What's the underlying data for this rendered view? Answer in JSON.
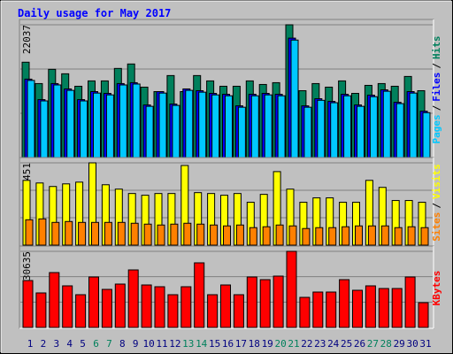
{
  "title": "Daily usage for May 2017",
  "separator": "/",
  "chart_data": [
    {
      "type": "bar",
      "ylim": [
        0,
        22037
      ],
      "yticks": [
        22037
      ],
      "series": [
        {
          "name": "Hits",
          "color": "#00805c",
          "values": [
            15825,
            12276,
            14642,
            13903,
            11832,
            12719,
            12719,
            14790,
            15530,
            11684,
            10945,
            13607,
            10945,
            13607,
            12719,
            11832,
            11832,
            12719,
            12128,
            12424,
            22037,
            11093,
            12276,
            11684,
            12719,
            10649,
            11980,
            12276,
            11832,
            13459,
            11093
          ]
        },
        {
          "name": "Files",
          "color": "#0000ff",
          "values": [
            13015,
            9614,
            12276,
            11388,
            9614,
            10945,
            10649,
            12276,
            12424,
            8726,
            10945,
            8874,
            11388,
            11093,
            10649,
            10501,
            8578,
            10501,
            10649,
            10501,
            19819,
            8578,
            9761,
            9318,
            10501,
            8726,
            10353,
            11240,
            9170,
            10945,
            7691
          ]
        },
        {
          "name": "Pages",
          "color": "#00c8ff",
          "values": [
            12800,
            9400,
            12050,
            11150,
            9400,
            10700,
            10400,
            12050,
            12200,
            8500,
            10700,
            8650,
            11150,
            10850,
            10400,
            10250,
            8350,
            10250,
            10400,
            10250,
            19500,
            8350,
            9500,
            9100,
            10250,
            8500,
            10100,
            11000,
            8950,
            10700,
            7450
          ]
        }
      ]
    },
    {
      "type": "bar",
      "ylim": [
        0,
        3451
      ],
      "yticks": [
        3451
      ],
      "series": [
        {
          "name": "Visits",
          "color": "#ffff00",
          "values": [
            2716,
            2606,
            2459,
            2569,
            2642,
            3451,
            2532,
            2349,
            2165,
            2092,
            2165,
            2165,
            3340,
            2202,
            2165,
            2092,
            2165,
            1798,
            2129,
            3083,
            2349,
            1798,
            1982,
            1982,
            1798,
            1798,
            2716,
            2422,
            1872,
            1872,
            1798
          ]
        },
        {
          "name": "Sites",
          "color": "#ff8000",
          "values": [
            1064,
            1101,
            954,
            991,
            954,
            954,
            954,
            954,
            918,
            881,
            844,
            881,
            918,
            881,
            844,
            807,
            844,
            734,
            771,
            844,
            807,
            697,
            734,
            734,
            771,
            807,
            807,
            807,
            734,
            771,
            734
          ]
        }
      ]
    },
    {
      "type": "bar",
      "ylim": [
        0,
        330635
      ],
      "yticks": [
        330635
      ],
      "categories": [
        "1",
        "2",
        "3",
        "4",
        "5",
        "6",
        "7",
        "8",
        "9",
        "10",
        "11",
        "12",
        "13",
        "14",
        "15",
        "16",
        "17",
        "18",
        "19",
        "20",
        "21",
        "22",
        "23",
        "24",
        "25",
        "26",
        "27",
        "28",
        "29",
        "30",
        "31"
      ],
      "category_colors": [
        "#000080",
        "#000080",
        "#000080",
        "#000080",
        "#000080",
        "#00805c",
        "#00805c",
        "#000080",
        "#000080",
        "#000080",
        "#000080",
        "#000080",
        "#00805c",
        "#00805c",
        "#000080",
        "#000080",
        "#000080",
        "#000080",
        "#000080",
        "#00805c",
        "#00805c",
        "#000080",
        "#000080",
        "#000080",
        "#000080",
        "#000080",
        "#00805c",
        "#00805c",
        "#000080",
        "#000080",
        "#000080"
      ],
      "series": [
        {
          "name": "KBytes",
          "color": "#ff0000",
          "values": [
            203785,
            149955,
            238390,
            180715,
            142265,
            219165,
            165335,
            188405,
            249925,
            184560,
            176870,
            142265,
            176870,
            280685,
            142265,
            184560,
            142265,
            219165,
            207630,
            223010,
            330635,
            130730,
            153800,
            153800,
            207630,
            161490,
            180715,
            169180,
            169180,
            219165,
            107660
          ]
        }
      ]
    }
  ]
}
